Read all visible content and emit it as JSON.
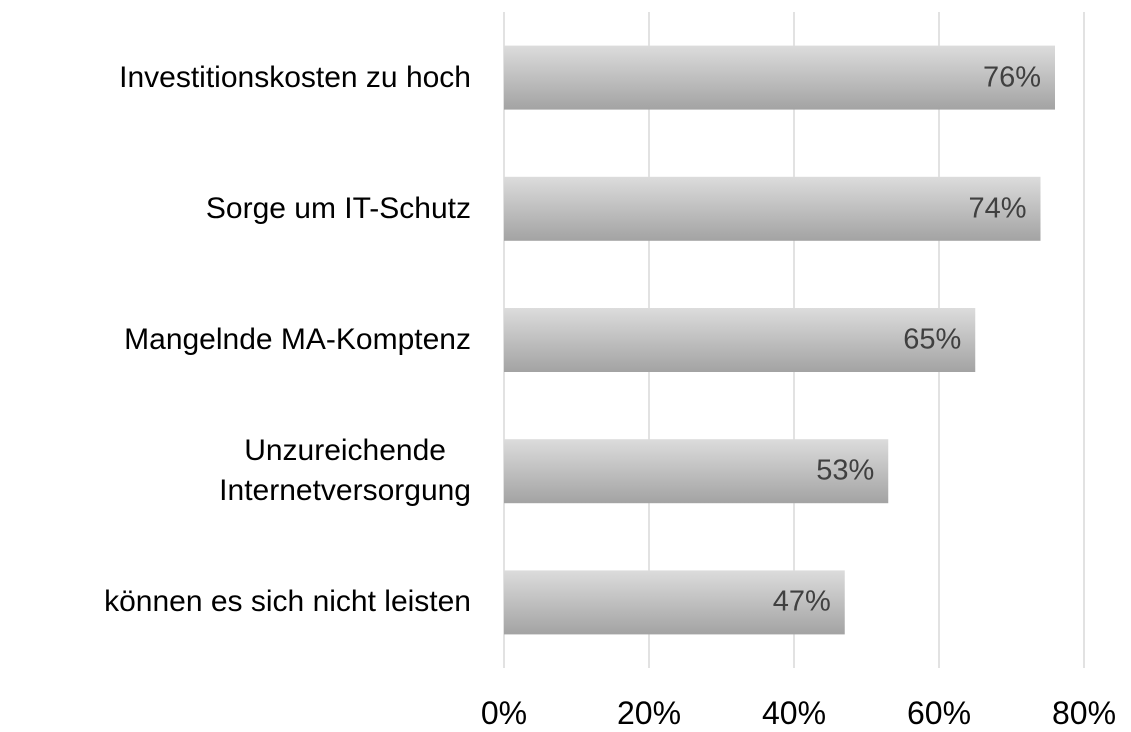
{
  "chart_data": {
    "type": "bar",
    "orientation": "horizontal",
    "categories": [
      "Investitionskosten zu hoch",
      "Sorge um IT-Schutz",
      "Mangelnde MA-Komptenz",
      "Unzureichende\nInternetversorgung",
      "können es sich nicht leisten"
    ],
    "values": [
      76,
      74,
      65,
      53,
      47
    ],
    "value_labels": [
      "76%",
      "74%",
      "65%",
      "53%",
      "47%"
    ],
    "xlim": [
      0,
      80
    ],
    "xticks": [
      {
        "value": 0,
        "label": "0%"
      },
      {
        "value": 20,
        "label": "20%"
      },
      {
        "value": 40,
        "label": "40%"
      },
      {
        "value": 60,
        "label": "60%"
      },
      {
        "value": 80,
        "label": "80%"
      }
    ],
    "grid": true
  }
}
